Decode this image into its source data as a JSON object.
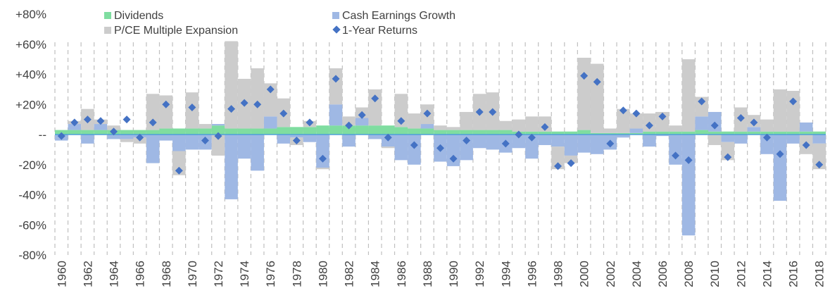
{
  "chart_data": {
    "type": "bar",
    "stacked": true,
    "title": "",
    "xlabel": "",
    "ylabel": "",
    "ylim": [
      -80,
      80
    ],
    "y_ticks": [
      -80,
      -60,
      -40,
      -20,
      0,
      20,
      40,
      60,
      80
    ],
    "y_tick_labels": [
      "-80%",
      "-60%",
      "-40%",
      "-20%",
      "--",
      "+20%",
      "+40%",
      "+60%",
      "+80%"
    ],
    "x_tick_labels_shown": [
      "1960",
      "1962",
      "1964",
      "1966",
      "1968",
      "1970",
      "1972",
      "1974",
      "1976",
      "1978",
      "1980",
      "1982",
      "1984",
      "1986",
      "1988",
      "1990",
      "1992",
      "1994",
      "1996",
      "1998",
      "2000",
      "2002",
      "2004",
      "2006",
      "2008",
      "2010",
      "2012",
      "2014",
      "2016",
      "2018"
    ],
    "grid": "vertical dashed",
    "legend_position": "top",
    "colors": {
      "dividends": "#7fdda0",
      "cash_earnings_growth": "#9fb8e4",
      "pce_multiple_expansion": "#cccccc",
      "returns_marker": "#4472c4",
      "zero_line": "#4f9fd8",
      "grid": "#bfbfbf"
    },
    "categories": [
      1960,
      1961,
      1962,
      1963,
      1964,
      1965,
      1966,
      1967,
      1968,
      1969,
      1970,
      1971,
      1972,
      1973,
      1974,
      1975,
      1976,
      1977,
      1978,
      1979,
      1980,
      1981,
      1982,
      1983,
      1984,
      1985,
      1986,
      1987,
      1988,
      1989,
      1990,
      1991,
      1992,
      1993,
      1994,
      1995,
      1996,
      1997,
      1998,
      1999,
      2000,
      2001,
      2002,
      2003,
      2004,
      2005,
      2006,
      2007,
      2008,
      2009,
      2010,
      2011,
      2012,
      2013,
      2014,
      2015,
      2016,
      2017,
      2018
    ],
    "series": [
      {
        "name": "Dividends",
        "values": [
          3,
          3,
          3,
          3,
          3,
          3,
          3,
          3,
          4,
          4,
          4,
          4,
          6,
          4,
          4,
          4,
          4,
          5,
          5,
          5,
          6,
          6,
          6,
          6,
          6,
          6,
          5,
          4,
          4,
          3,
          3,
          3,
          3,
          3,
          3,
          2,
          2,
          2,
          2,
          2,
          3,
          1,
          1,
          1,
          1,
          2,
          2,
          2,
          2,
          3,
          2,
          2,
          2,
          2,
          2,
          2,
          2,
          2,
          2
        ]
      },
      {
        "name": "Cash Earnings Growth",
        "values": [
          -4,
          4,
          -6,
          4,
          -3,
          -3,
          -2,
          -19,
          -4,
          -11,
          -10,
          -10,
          1,
          -43,
          -16,
          -24,
          8,
          -6,
          -2,
          -5,
          -22,
          14,
          -8,
          5,
          -3,
          -8,
          -17,
          -20,
          3,
          -18,
          -21,
          -17,
          -9,
          -10,
          -12,
          -9,
          -16,
          -7,
          -8,
          -14,
          -12,
          -13,
          -10,
          -2,
          3,
          -8,
          -1,
          -20,
          -67,
          9,
          13,
          -5,
          -6,
          3,
          -13,
          -44,
          -6,
          6,
          -6
        ]
      },
      {
        "name": "P/CE Multiple Expansion",
        "values": [
          0,
          2,
          14,
          3,
          3,
          -2,
          -4,
          24,
          22,
          -16,
          24,
          3,
          -14,
          58,
          33,
          40,
          22,
          19,
          -5,
          4,
          -1,
          24,
          6,
          7,
          24,
          -1,
          22,
          10,
          13,
          3,
          2,
          12,
          24,
          25,
          6,
          8,
          10,
          10,
          -15,
          -5,
          48,
          46,
          3,
          16,
          10,
          12,
          13,
          4,
          48,
          13,
          -7,
          -12,
          16,
          8,
          8,
          28,
          27,
          -13,
          -17
        ]
      },
      {
        "name": "1-Year Returns",
        "values": [
          -1,
          8,
          10,
          9,
          2,
          10,
          -2,
          8,
          20,
          -24,
          18,
          -4,
          -1,
          17,
          21,
          20,
          30,
          14,
          -4,
          8,
          -16,
          37,
          6,
          13,
          24,
          -2,
          9,
          -7,
          14,
          -9,
          -16,
          -4,
          15,
          15,
          -6,
          0,
          -2,
          5,
          -21,
          -19,
          39,
          35,
          -6,
          16,
          14,
          6,
          12,
          -14,
          -17,
          22,
          6,
          -15,
          11,
          8,
          -2,
          -13,
          22,
          -7,
          -20
        ]
      }
    ]
  },
  "legend": {
    "dividends": "Dividends",
    "cash_earnings_growth": "Cash Earnings Growth",
    "pce_multiple_expansion": "P/CE Multiple Expansion",
    "returns": "1-Year Returns"
  }
}
